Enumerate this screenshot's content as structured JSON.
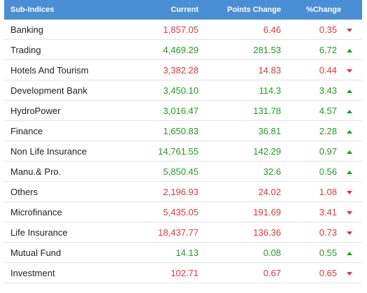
{
  "table": {
    "headers": [
      "Sub-Indices",
      "Current",
      "Points Change",
      "%Change"
    ],
    "colors": {
      "up": "#1e9c1e",
      "down": "#e0353d",
      "header_bg": "#4a8fd4"
    },
    "rows": [
      {
        "name": "Banking",
        "current": "1,857.05",
        "points": "6.46",
        "pct": "0.35",
        "dir": "down"
      },
      {
        "name": "Trading",
        "current": "4,469.29",
        "points": "281.53",
        "pct": "6.72",
        "dir": "up"
      },
      {
        "name": "Hotels And Tourism",
        "current": "3,382.28",
        "points": "14.83",
        "pct": "0.44",
        "dir": "down"
      },
      {
        "name": "Development Bank",
        "current": "3,450.10",
        "points": "114.3",
        "pct": "3.43",
        "dir": "up"
      },
      {
        "name": "HydroPower",
        "current": "3,016.47",
        "points": "131.78",
        "pct": "4.57",
        "dir": "up"
      },
      {
        "name": "Finance",
        "current": "1,650.83",
        "points": "36.81",
        "pct": "2.28",
        "dir": "up"
      },
      {
        "name": "Non Life Insurance",
        "current": "14,761.55",
        "points": "142.29",
        "pct": "0.97",
        "dir": "up"
      },
      {
        "name": "Manu.& Pro.",
        "current": "5,850.45",
        "points": "32.6",
        "pct": "0.56",
        "dir": "up"
      },
      {
        "name": "Others",
        "current": "2,196.93",
        "points": "24.02",
        "pct": "1.08",
        "dir": "down"
      },
      {
        "name": "Microfinance",
        "current": "5,435.05",
        "points": "191.69",
        "pct": "3.41",
        "dir": "down"
      },
      {
        "name": "Life Insurance",
        "current": "18,437.77",
        "points": "136.36",
        "pct": "0.73",
        "dir": "down"
      },
      {
        "name": "Mutual Fund",
        "current": "14.13",
        "points": "0.08",
        "pct": "0.55",
        "dir": "up"
      },
      {
        "name": "Investment",
        "current": "102.71",
        "points": "0.67",
        "pct": "0.65",
        "dir": "down"
      }
    ]
  }
}
